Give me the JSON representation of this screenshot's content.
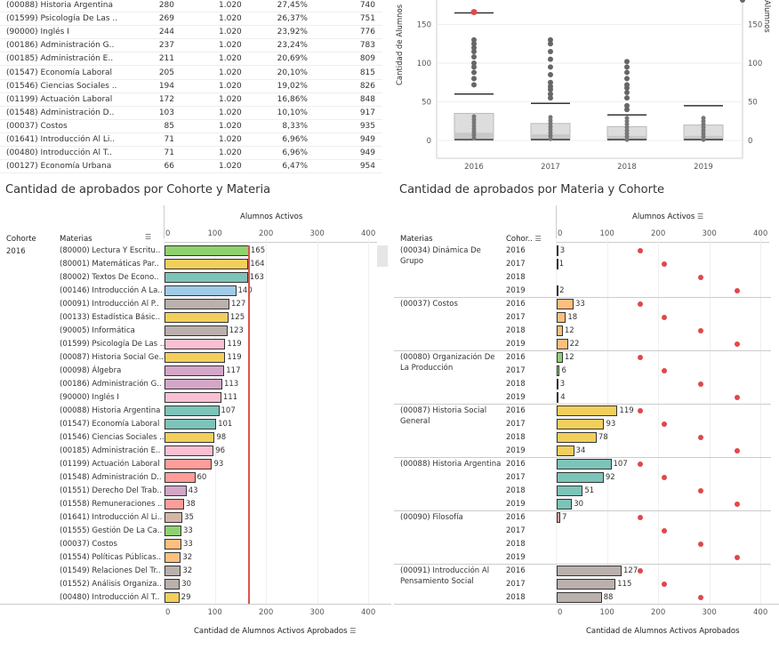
{
  "top_table": {
    "rows": [
      {
        "name": "(00088) Historia Argentina",
        "c1": "280",
        "c2": "1.020",
        "c3": "27,45%",
        "c4": "740"
      },
      {
        "name": "(01599) Psicología De Las ..",
        "c1": "269",
        "c2": "1.020",
        "c3": "26,37%",
        "c4": "751"
      },
      {
        "name": "(90000) Inglés I",
        "c1": "244",
        "c2": "1.020",
        "c3": "23,92%",
        "c4": "776"
      },
      {
        "name": "(00186) Administración G..",
        "c1": "237",
        "c2": "1.020",
        "c3": "23,24%",
        "c4": "783"
      },
      {
        "name": "(00185) Administración E..",
        "c1": "211",
        "c2": "1.020",
        "c3": "20,69%",
        "c4": "809"
      },
      {
        "name": "(01547) Economía Laboral",
        "c1": "205",
        "c2": "1.020",
        "c3": "20,10%",
        "c4": "815"
      },
      {
        "name": "(01546) Ciencias Sociales ..",
        "c1": "194",
        "c2": "1.020",
        "c3": "19,02%",
        "c4": "826"
      },
      {
        "name": "(01199) Actuación Laboral",
        "c1": "172",
        "c2": "1.020",
        "c3": "16,86%",
        "c4": "848"
      },
      {
        "name": "(01548) Administración D..",
        "c1": "103",
        "c2": "1.020",
        "c3": "10,10%",
        "c4": "917"
      },
      {
        "name": "(00037) Costos",
        "c1": "85",
        "c2": "1.020",
        "c3": "8,33%",
        "c4": "935"
      },
      {
        "name": "(01641) Introducción Al Li..",
        "c1": "71",
        "c2": "1.020",
        "c3": "6,96%",
        "c4": "949"
      },
      {
        "name": "(00480) Introducción Al T..",
        "c1": "71",
        "c2": "1.020",
        "c3": "6,96%",
        "c4": "949"
      },
      {
        "name": "(00127) Economía Urbana",
        "c1": "66",
        "c2": "1.020",
        "c3": "6,47%",
        "c4": "954"
      }
    ]
  },
  "boxplot": {
    "ylabel": "Cantidad de Alumnos",
    "right_label": "Alumnos",
    "yticks": [
      "150",
      "100",
      "50",
      "0"
    ],
    "years": [
      "2016",
      "2017",
      "2018",
      "2019"
    ]
  },
  "left_chart": {
    "title": "Cantidad de aprobados por Cohorte y Materia",
    "top_axis_label": "Alumnos Activos",
    "bottom_axis_label": "Cantidad de Alumnos Activos Aprobados",
    "col_cohorte": "Cohorte",
    "col_materias": "Materias",
    "cohorte_value": "2016",
    "ticks": [
      "0",
      "100",
      "200",
      "300",
      "400"
    ],
    "rows": [
      {
        "name": "(80000) Lectura Y Escritu..",
        "value": 165,
        "label": "165",
        "color": "#8fd16f"
      },
      {
        "name": "(80001) Matemáticas Par..",
        "value": 164,
        "label": "164",
        "color": "#f2cf5b"
      },
      {
        "name": "(80002) Textos De Econo..",
        "value": 163,
        "label": "163",
        "color": "#7cc4b8"
      },
      {
        "name": "(00146) Introducción A La..",
        "value": 140,
        "label": "140",
        "color": "#a0cbe8"
      },
      {
        "name": "(00091) Introducción Al P..",
        "value": 127,
        "label": "127",
        "color": "#bab0ac"
      },
      {
        "name": "(00133) Estadística Básic..",
        "value": 125,
        "label": "125",
        "color": "#f2cf5b"
      },
      {
        "name": "(90005) Informática",
        "value": 123,
        "label": "123",
        "color": "#bab0ac"
      },
      {
        "name": "(01599) Psicología De Las ..",
        "value": 119,
        "label": "119",
        "color": "#fabfd2"
      },
      {
        "name": "(00087) Historia Social Ge..",
        "value": 119,
        "label": "119",
        "color": "#f2cf5b"
      },
      {
        "name": "(00098) Álgebra",
        "value": 117,
        "label": "117",
        "color": "#d4a6c8"
      },
      {
        "name": "(00186) Administración G..",
        "value": 113,
        "label": "113",
        "color": "#d4a6c8"
      },
      {
        "name": "(90000) Inglés I",
        "value": 111,
        "label": "111",
        "color": "#fabfd2"
      },
      {
        "name": "(00088) Historia Argentina",
        "value": 107,
        "label": "107",
        "color": "#7cc4b8"
      },
      {
        "name": "(01547) Economía Laboral",
        "value": 101,
        "label": "101",
        "color": "#7cc4b8"
      },
      {
        "name": "(01546) Ciencias Sociales ..",
        "value": 98,
        "label": "98",
        "color": "#f2cf5b"
      },
      {
        "name": "(00185) Administración E..",
        "value": 96,
        "label": "96",
        "color": "#fabfd2"
      },
      {
        "name": "(01199) Actuación Laboral",
        "value": 93,
        "label": "93",
        "color": "#ff9d9a"
      },
      {
        "name": "(01548) Administración D..",
        "value": 60,
        "label": "60",
        "color": "#ff9d9a"
      },
      {
        "name": "(01551) Derecho Del Trab..",
        "value": 43,
        "label": "43",
        "color": "#d4a6c8"
      },
      {
        "name": "(01558) Remuneraciones ..",
        "value": 38,
        "label": "38",
        "color": "#ff9d9a"
      },
      {
        "name": "(01641) Introducción Al Li..",
        "value": 35,
        "label": "35",
        "color": "#d7b5a6"
      },
      {
        "name": "(01555) Gestión De La Ca..",
        "value": 33,
        "label": "33",
        "color": "#8fd16f"
      },
      {
        "name": "(00037) Costos",
        "value": 33,
        "label": "33",
        "color": "#ffbe7d"
      },
      {
        "name": "(01554) Políticas Públicas..",
        "value": 32,
        "label": "32",
        "color": "#ffbe7d"
      },
      {
        "name": "(01549) Relaciones Del Tr..",
        "value": 32,
        "label": "32",
        "color": "#bab0ac"
      },
      {
        "name": "(01552) Análisis Organiza..",
        "value": 30,
        "label": "30",
        "color": "#bab0ac"
      },
      {
        "name": "(00480) Introducción Al T..",
        "value": 29,
        "label": "29",
        "color": "#f2cf5b"
      }
    ],
    "ref_value": 165
  },
  "right_chart": {
    "title": "Cantidad de aprobados por Materia y Cohorte",
    "top_axis_label": "Alumnos Activos",
    "bottom_axis_label": "Cantidad de Alumnos Activos Aprobados",
    "col_materias": "Materias",
    "col_cohorte": "Cohor..",
    "ticks": [
      "0",
      "100",
      "200",
      "300",
      "400"
    ],
    "groups": [
      {
        "name1": "(00034) Dinámica De",
        "name2": "Grupo",
        "color": "#a0cbe8",
        "rows": [
          {
            "year": "2016",
            "value": 3,
            "label": "3",
            "dot": 165
          },
          {
            "year": "2017",
            "value": 1,
            "label": "1",
            "dot": 213
          },
          {
            "year": "2018",
            "value": 0,
            "label": "",
            "dot": 284
          },
          {
            "year": "2019",
            "value": 2,
            "label": "2",
            "dot": 355
          }
        ]
      },
      {
        "name1": "(00037) Costos",
        "name2": "",
        "color": "#ffbe7d",
        "rows": [
          {
            "year": "2016",
            "value": 33,
            "label": "33",
            "dot": 165
          },
          {
            "year": "2017",
            "value": 18,
            "label": "18",
            "dot": 213
          },
          {
            "year": "2018",
            "value": 12,
            "label": "12",
            "dot": 284
          },
          {
            "year": "2019",
            "value": 22,
            "label": "22",
            "dot": 355
          }
        ]
      },
      {
        "name1": "(00080) Organización De",
        "name2": "La Producción",
        "color": "#8fd16f",
        "rows": [
          {
            "year": "2016",
            "value": 12,
            "label": "12",
            "dot": 165
          },
          {
            "year": "2017",
            "value": 6,
            "label": "6",
            "dot": 213
          },
          {
            "year": "2018",
            "value": 3,
            "label": "3",
            "dot": 284
          },
          {
            "year": "2019",
            "value": 4,
            "label": "4",
            "dot": 355
          }
        ]
      },
      {
        "name1": "(00087) Historia Social",
        "name2": "General",
        "color": "#f2cf5b",
        "rows": [
          {
            "year": "2016",
            "value": 119,
            "label": "119",
            "dot": 165
          },
          {
            "year": "2017",
            "value": 93,
            "label": "93",
            "dot": 213
          },
          {
            "year": "2018",
            "value": 78,
            "label": "78",
            "dot": 284
          },
          {
            "year": "2019",
            "value": 34,
            "label": "34",
            "dot": 355
          }
        ]
      },
      {
        "name1": "(00088) Historia Argentina",
        "name2": "",
        "color": "#7cc4b8",
        "rows": [
          {
            "year": "2016",
            "value": 107,
            "label": "107",
            "dot": 165
          },
          {
            "year": "2017",
            "value": 92,
            "label": "92",
            "dot": 213
          },
          {
            "year": "2018",
            "value": 51,
            "label": "51",
            "dot": 284
          },
          {
            "year": "2019",
            "value": 30,
            "label": "30",
            "dot": 355
          }
        ]
      },
      {
        "name1": "(00090) Filosofía",
        "name2": "",
        "color": "#ff9d9a",
        "rows": [
          {
            "year": "2016",
            "value": 7,
            "label": "7",
            "dot": 165
          },
          {
            "year": "2017",
            "value": 0,
            "label": "",
            "dot": 213
          },
          {
            "year": "2018",
            "value": 0,
            "label": "",
            "dot": 284
          },
          {
            "year": "2019",
            "value": 0,
            "label": "",
            "dot": 355
          }
        ]
      },
      {
        "name1": "(00091) Introducción Al",
        "name2": "Pensamiento Social",
        "color": "#bab0ac",
        "rows": [
          {
            "year": "2016",
            "value": 127,
            "label": "127",
            "dot": 165
          },
          {
            "year": "2017",
            "value": 115,
            "label": "115",
            "dot": 213
          },
          {
            "year": "2018",
            "value": 88,
            "label": "88",
            "dot": 284
          }
        ]
      }
    ]
  }
}
